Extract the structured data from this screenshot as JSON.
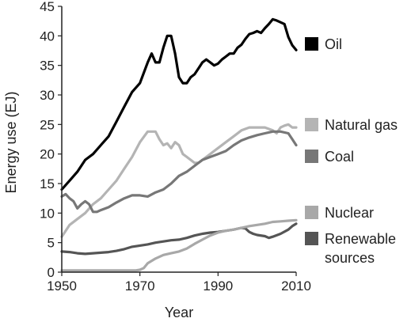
{
  "chart_data": {
    "type": "line",
    "xlabel": "Year",
    "ylabel": "Energy use (EJ)",
    "xlim": [
      1950,
      2010
    ],
    "ylim": [
      0,
      45
    ],
    "x_ticks": [
      1950,
      1970,
      1990,
      2010
    ],
    "y_ticks": [
      0,
      5,
      10,
      15,
      20,
      25,
      30,
      35,
      40,
      45
    ],
    "grid": false,
    "legend_placement": "right",
    "series": [
      {
        "name": "Oil",
        "color": "#000000",
        "x": [
          1950,
          1952,
          1954,
          1956,
          1958,
          1960,
          1962,
          1964,
          1966,
          1968,
          1970,
          1972,
          1973,
          1974,
          1975,
          1976,
          1977,
          1978,
          1979,
          1980,
          1981,
          1982,
          1983,
          1984,
          1985,
          1986,
          1987,
          1988,
          1989,
          1990,
          1991,
          1992,
          1993,
          1994,
          1995,
          1996,
          1997,
          1998,
          1999,
          2000,
          2001,
          2002,
          2003,
          2004,
          2005,
          2006,
          2007,
          2008,
          2009,
          2010
        ],
        "values": [
          14,
          15.5,
          17,
          19,
          20,
          21.5,
          23,
          25.5,
          28,
          30.5,
          32,
          35.5,
          37,
          35.5,
          35.5,
          38,
          40,
          40,
          37,
          33,
          32,
          32,
          33,
          33.5,
          34.5,
          35.5,
          36,
          35.5,
          35,
          35.3,
          36,
          36.5,
          37,
          37,
          38,
          38.5,
          39.5,
          40.3,
          40.5,
          40.8,
          40.5,
          41.3,
          42,
          42.8,
          42.6,
          42.3,
          42,
          39.8,
          38.4,
          37.6
        ]
      },
      {
        "name": "Natural gas",
        "color": "#b4b4b4",
        "x": [
          1950,
          1952,
          1954,
          1956,
          1958,
          1960,
          1962,
          1964,
          1966,
          1968,
          1970,
          1972,
          1974,
          1975,
          1976,
          1977,
          1978,
          1979,
          1980,
          1981,
          1982,
          1983,
          1984,
          1985,
          1986,
          1987,
          1988,
          1989,
          1990,
          1992,
          1994,
          1996,
          1998,
          2000,
          2002,
          2004,
          2005,
          2006,
          2007,
          2008,
          2009,
          2010
        ],
        "values": [
          6,
          8,
          9,
          10,
          11.5,
          12.5,
          14,
          15.5,
          17.5,
          19.5,
          22,
          23.8,
          23.8,
          22.5,
          21.5,
          21.8,
          21,
          22,
          21.5,
          20,
          19.5,
          19,
          18.5,
          18.5,
          19,
          19.5,
          20,
          20.5,
          21,
          22,
          23,
          24,
          24.5,
          24.5,
          24.5,
          24,
          23.5,
          24.5,
          24.8,
          25,
          24.5,
          24.5
        ]
      },
      {
        "name": "Coal",
        "color": "#777777",
        "x": [
          1950,
          1951,
          1952,
          1953,
          1954,
          1955,
          1956,
          1957,
          1958,
          1959,
          1960,
          1962,
          1964,
          1966,
          1968,
          1970,
          1972,
          1974,
          1976,
          1978,
          1980,
          1982,
          1984,
          1986,
          1988,
          1990,
          1992,
          1994,
          1996,
          1998,
          2000,
          2002,
          2004,
          2006,
          2008,
          2009,
          2010
        ],
        "values": [
          12.8,
          13.2,
          12.5,
          12,
          10.8,
          11.5,
          12,
          11.5,
          10.2,
          10.2,
          10.5,
          11,
          11.8,
          12.5,
          13,
          13,
          12.8,
          13.5,
          14,
          15,
          16.3,
          17,
          18,
          19,
          19.5,
          20,
          20.5,
          21.5,
          22.3,
          22.8,
          23.2,
          23.5,
          23.8,
          23.8,
          23.5,
          22.5,
          21.5
        ]
      },
      {
        "name": "Nuclear",
        "color": "#a8a8a8",
        "x": [
          1950,
          1960,
          1966,
          1969,
          1970,
          1971,
          1972,
          1974,
          1976,
          1978,
          1980,
          1982,
          1984,
          1986,
          1988,
          1990,
          1992,
          1994,
          1996,
          1998,
          2000,
          2002,
          2004,
          2006,
          2008,
          2010
        ],
        "values": [
          0.3,
          0.3,
          0.3,
          0.3,
          0.4,
          0.7,
          1.5,
          2.3,
          2.9,
          3.2,
          3.5,
          4,
          4.8,
          5.5,
          6.2,
          6.7,
          7,
          7.2,
          7.5,
          7.8,
          8,
          8.2,
          8.5,
          8.6,
          8.7,
          8.8
        ]
      },
      {
        "name": "Renewable sources",
        "color": "#555555",
        "x": [
          1950,
          1952,
          1954,
          1956,
          1958,
          1960,
          1962,
          1964,
          1966,
          1968,
          1970,
          1972,
          1974,
          1976,
          1978,
          1980,
          1982,
          1984,
          1986,
          1988,
          1990,
          1992,
          1994,
          1996,
          1997,
          1998,
          1999,
          2000,
          2002,
          2003,
          2004,
          2006,
          2008,
          2009,
          2010
        ],
        "values": [
          3.5,
          3.4,
          3.2,
          3.1,
          3.2,
          3.3,
          3.4,
          3.6,
          3.9,
          4.3,
          4.5,
          4.7,
          5,
          5.2,
          5.4,
          5.5,
          5.8,
          6.2,
          6.5,
          6.7,
          6.8,
          7,
          7.2,
          7.5,
          7.4,
          6.8,
          6.5,
          6.3,
          6.1,
          5.8,
          6,
          6.5,
          7.2,
          7.8,
          8.2
        ]
      }
    ]
  }
}
